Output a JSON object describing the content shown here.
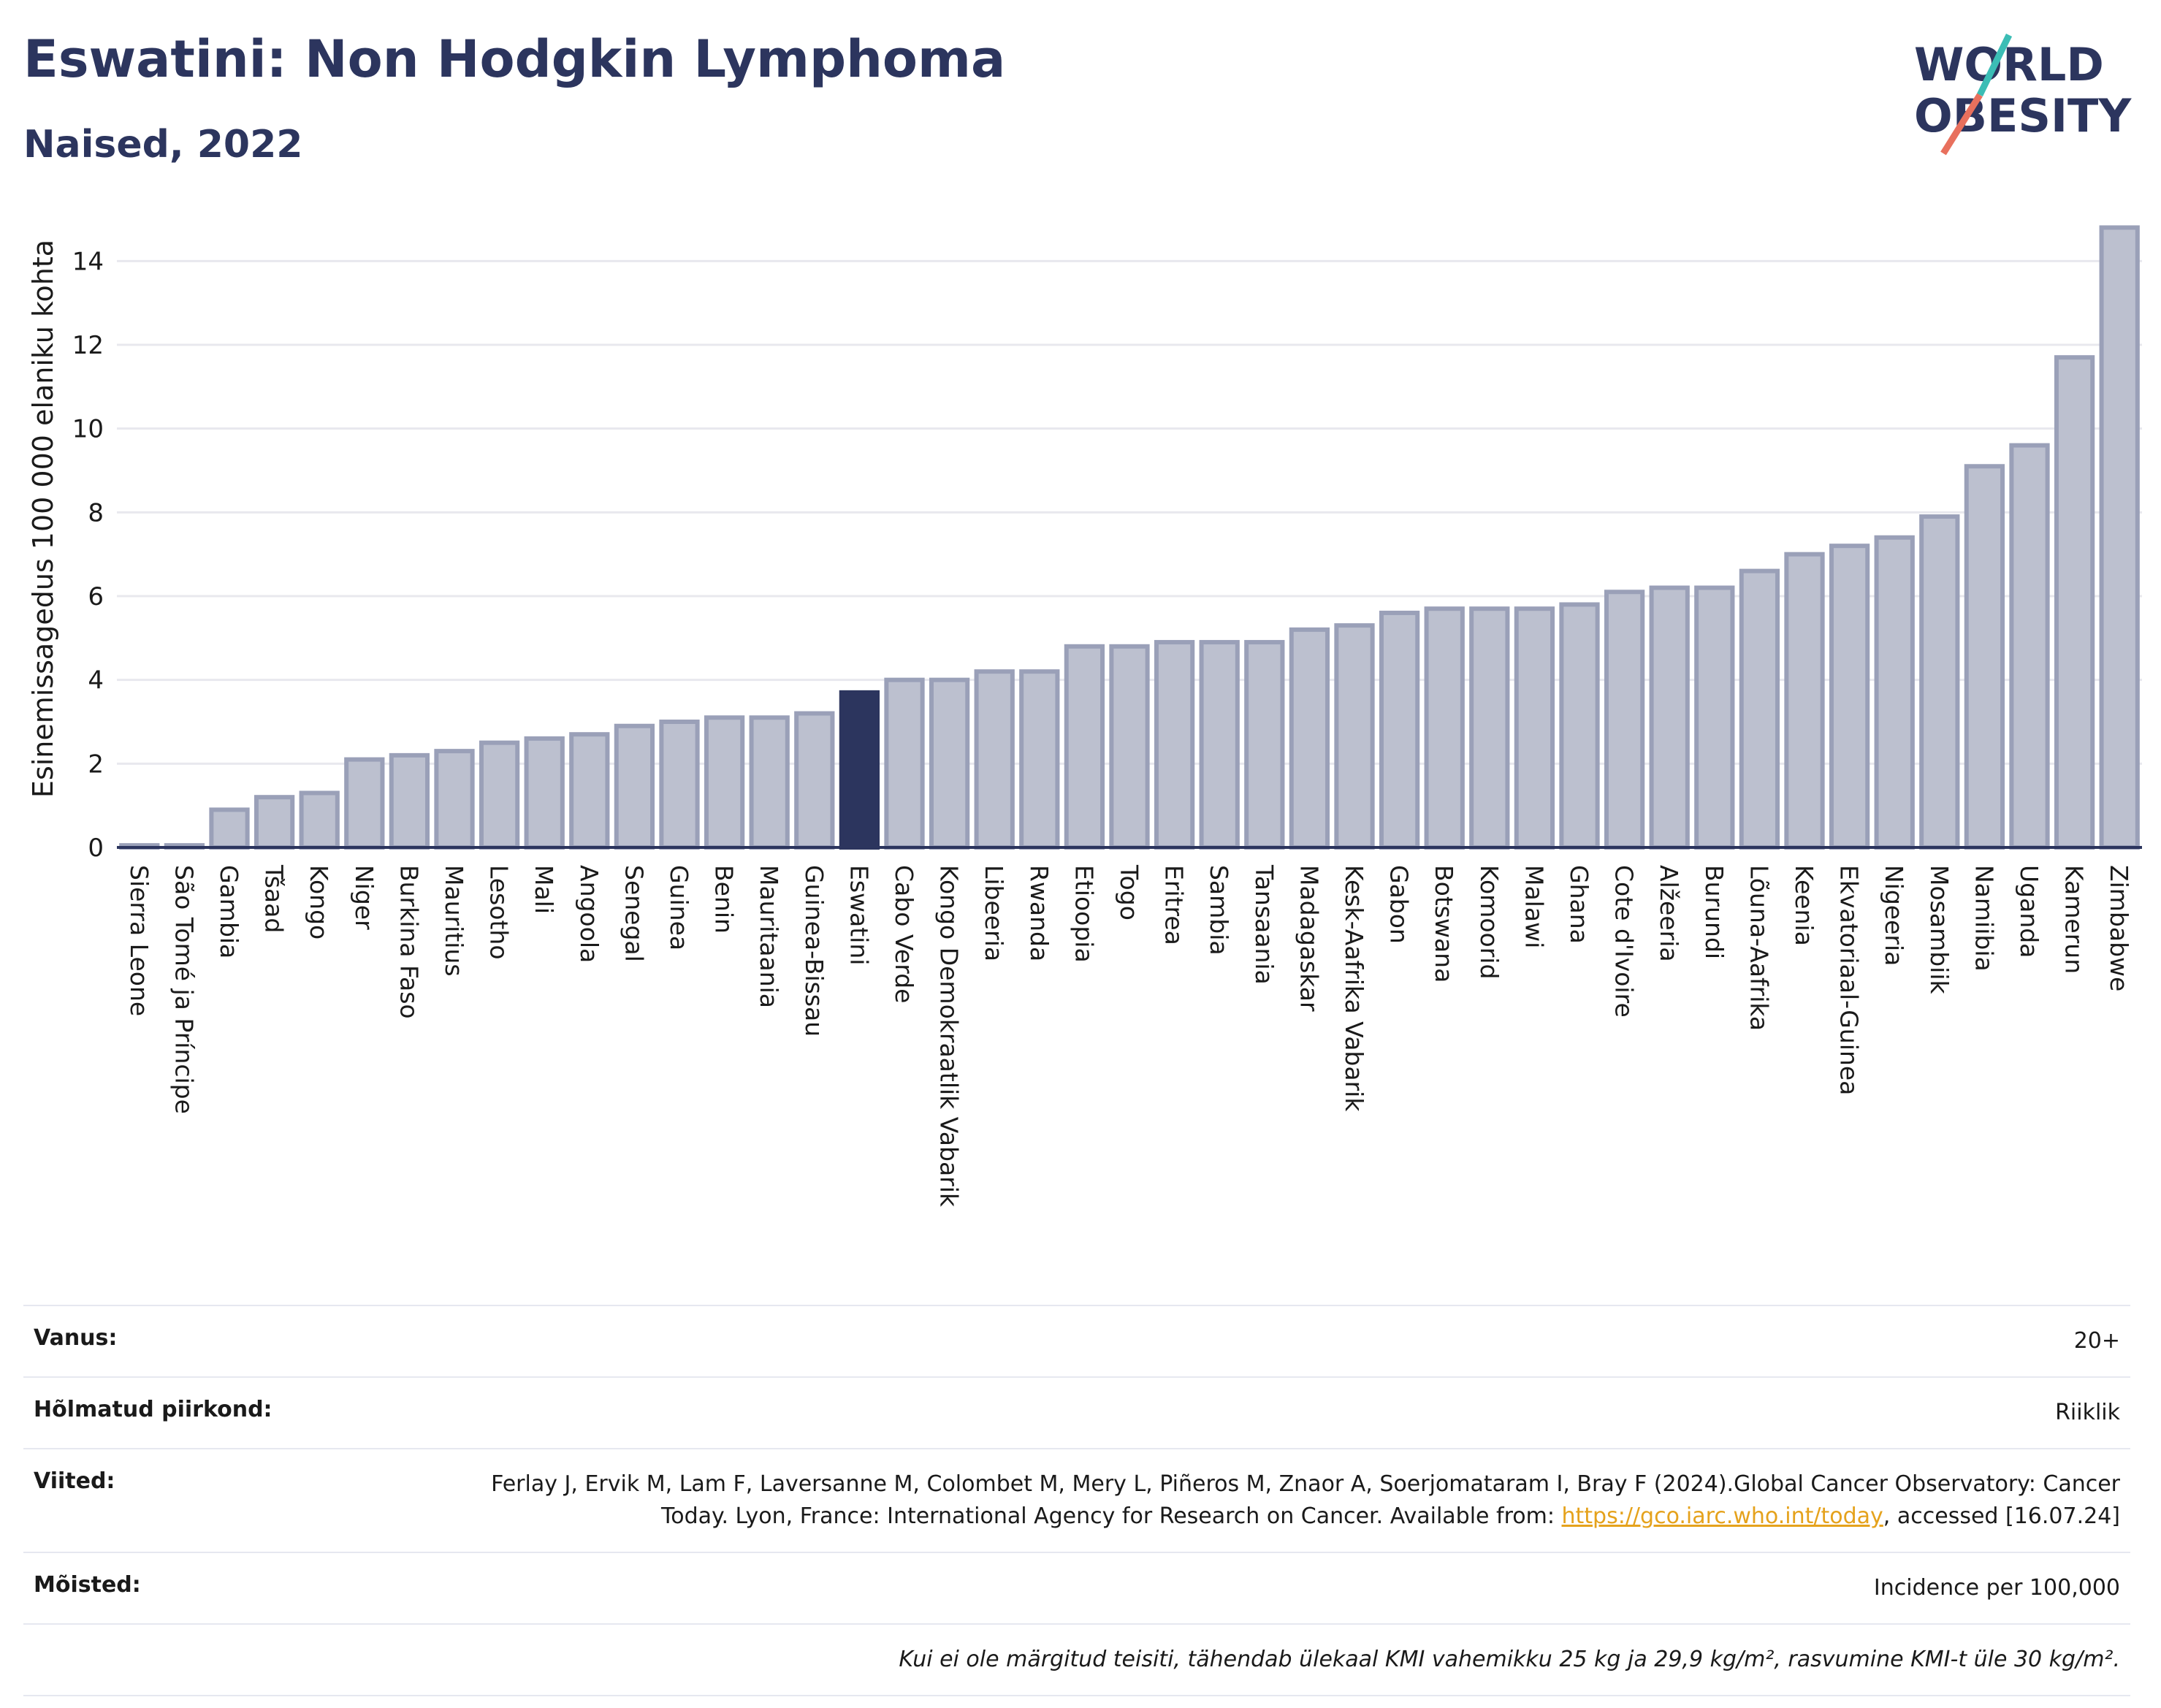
{
  "header": {
    "title": "Eswatini: Non Hodgkin Lymphoma",
    "subtitle": "Naised, 2022"
  },
  "logo": {
    "line1": "WORLD",
    "line2": "OBESITY"
  },
  "colors": {
    "bar": "#bcc0cf",
    "bar_border": "#9aa0b8",
    "highlight": "#2c355e",
    "grid": "#e8e8ee",
    "axis": "#2c355e",
    "text": "#1a1a1a",
    "logo_teal": "#3bbdb5",
    "logo_red": "#e8705d"
  },
  "chart_data": {
    "type": "bar",
    "ylabel": "Esinemissagedus 100 000 elaniku kohta",
    "xlabel": "",
    "ylim": [
      0,
      15
    ],
    "yticks": [
      0,
      2,
      4,
      6,
      8,
      10,
      12,
      14
    ],
    "grid": true,
    "highlight": "Eswatini",
    "categories": [
      "Sierra Leone",
      "São Tomé ja Príncipe",
      "Gambia",
      "Tšaad",
      "Kongo",
      "Niger",
      "Burkina Faso",
      "Mauritius",
      "Lesotho",
      "Mali",
      "Angoola",
      "Senegal",
      "Guinea",
      "Benin",
      "Mauritaania",
      "Guinea-Bissau",
      "Eswatini",
      "Cabo Verde",
      "Kongo Demokraatlik Vabarik",
      "Libeeria",
      "Rwanda",
      "Etioopia",
      "Togo",
      "Eritrea",
      "Sambia",
      "Tansaania",
      "Madagaskar",
      "Kesk-Aafrika Vabarik",
      "Gabon",
      "Botswana",
      "Komoorid",
      "Malawi",
      "Ghana",
      "Cote d'Ivoire",
      "Alžeeria",
      "Burundi",
      "Lõuna-Aafrika",
      "Keenia",
      "Ekvatoriaal-Guinea",
      "Nigeeria",
      "Mosambiik",
      "Namiibia",
      "Uganda",
      "Kamerun",
      "Zimbabwe"
    ],
    "values": [
      0.05,
      0.05,
      0.9,
      1.2,
      1.3,
      2.1,
      2.2,
      2.3,
      2.5,
      2.6,
      2.7,
      2.9,
      3.0,
      3.1,
      3.1,
      3.2,
      3.7,
      4.0,
      4.0,
      4.2,
      4.2,
      4.8,
      4.8,
      4.9,
      4.9,
      4.9,
      5.2,
      5.3,
      5.6,
      5.7,
      5.7,
      5.7,
      5.8,
      6.1,
      6.2,
      6.2,
      6.6,
      7.0,
      7.2,
      7.4,
      7.9,
      9.1,
      9.6,
      11.7,
      14.8
    ]
  },
  "meta": {
    "age_label": "Vanus:",
    "age_value": "20+",
    "region_label": "Hõlmatud piirkond:",
    "region_value": "Riiklik",
    "refs_label": "Viited:",
    "refs_text": "Ferlay J, Ervik M, Lam F, Laversanne M, Colombet M, Mery L, Piñeros M, Znaor A, Soerjomataram I, Bray F (2024).Global Cancer Observatory: Cancer Today. Lyon, France: International Agency for Research on Cancer. Available from: ",
    "refs_link": "https://gco.iarc.who.int/today",
    "refs_tail": ", accessed [16.07.24]",
    "definitions_label": "Mõisted:",
    "definitions_value": "Incidence per 100,000",
    "note": "Kui ei ole märgitud teisiti, tähendab ülekaal KMI vahemikku 25 kg ja 29,9 kg/m², rasvumine KMI-t üle 30 kg/m²."
  }
}
